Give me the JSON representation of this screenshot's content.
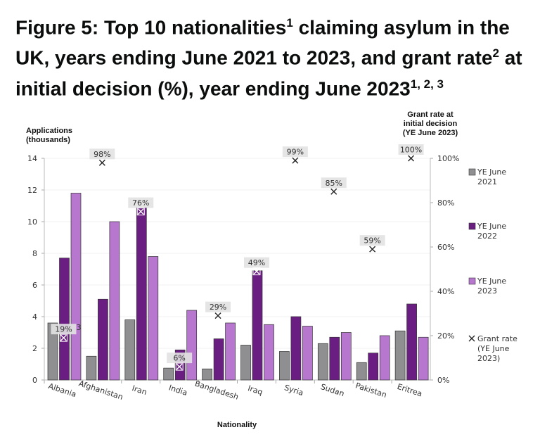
{
  "title": {
    "text": "Figure 5: Top 10 nationalities",
    "sup1": "1",
    "text2": " claiming asylum in the UK, years ending June 2021 to 2023, and grant rate",
    "sup2": "2",
    "text3": " at initial decision (%), year ending June 2023",
    "sup3": "1, 2, 3"
  },
  "chart_data": {
    "type": "bar",
    "title": "Figure 5: Top 10 nationalities claiming asylum in the UK, years ending June 2021 to 2023, and grant rate at initial decision (%), year ending June 2023",
    "xlabel": "Nationality",
    "ylabel": "Applications (thousands)",
    "y2label": [
      "Grant rate at",
      "initial decision",
      "(YE June 2023)"
    ],
    "ylim": [
      0,
      14
    ],
    "yticks": [
      0,
      2,
      4,
      6,
      8,
      10,
      12,
      14
    ],
    "y2lim": [
      0,
      100
    ],
    "y2ticks": [
      "0%",
      "20%",
      "40%",
      "60%",
      "80%",
      "100%"
    ],
    "categories": [
      "Albania",
      "Afghanistan",
      "Iran",
      "India",
      "Bangladesh",
      "Iraq",
      "Syria",
      "Sudan",
      "Pakistan",
      "Eritrea"
    ],
    "series": [
      {
        "name": "YE June 2021",
        "color": "#8f8f91",
        "values": [
          3.6,
          1.5,
          3.8,
          0.75,
          0.7,
          2.2,
          1.8,
          2.3,
          1.1,
          3.1
        ]
      },
      {
        "name": "YE June 2022",
        "color": "#6b1e82",
        "values": [
          7.7,
          5.1,
          10.9,
          1.9,
          2.6,
          6.9,
          4.0,
          2.7,
          1.7,
          4.8
        ]
      },
      {
        "name": "YE June 2023",
        "color": "#b777cf",
        "values": [
          11.8,
          10.0,
          7.8,
          4.4,
          3.6,
          3.5,
          3.4,
          3.0,
          2.8,
          2.7
        ]
      }
    ],
    "grant_rate": {
      "name": "Grant rate (YE June 2023)",
      "marker": "x",
      "axis": "right",
      "values": [
        19,
        98,
        76,
        6,
        29,
        49,
        99,
        85,
        59,
        100
      ],
      "labels": [
        "19%",
        "98%",
        "76%",
        "6%",
        "29%",
        "49%",
        "99%",
        "85%",
        "59%",
        "100%"
      ],
      "footnote_on_first": "3"
    },
    "legend": {
      "placement": "right",
      "entries": [
        [
          "YE June",
          "2021"
        ],
        [
          "YE June",
          "2022"
        ],
        [
          "YE June",
          "2023"
        ],
        [
          "Grant rate",
          "(YE June",
          "2023)"
        ]
      ]
    },
    "grid": true
  }
}
